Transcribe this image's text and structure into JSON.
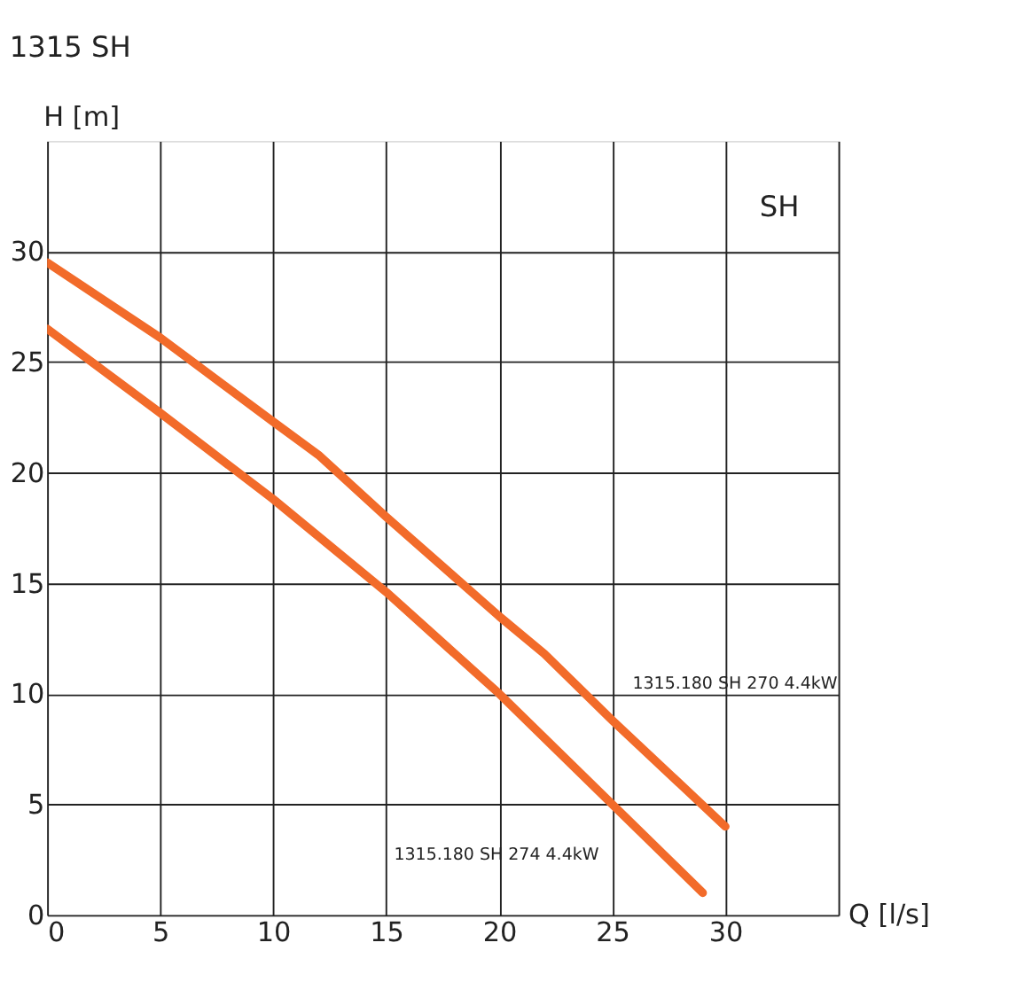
{
  "chart_data": {
    "type": "line",
    "title": "1315 SH",
    "xlabel": "Q [l/s]",
    "ylabel": "H [m]",
    "annotations": [
      "SH"
    ],
    "xlim": [
      0,
      35
    ],
    "ylim": [
      0,
      35
    ],
    "xticks": [
      0,
      5,
      10,
      15,
      20,
      25,
      30,
      {
        "value": 35,
        "label": null
      }
    ],
    "yticks": [
      0,
      5,
      10,
      15,
      20,
      25,
      30
    ],
    "grid": true,
    "legend": false,
    "marker": "none",
    "line_style": "solid",
    "series": [
      {
        "name": "1315.180 SH 270 4.4kW",
        "color": "#f26b2a",
        "x": [
          0,
          5,
          10,
          12,
          15,
          20,
          22,
          25,
          30
        ],
        "values": [
          29.5,
          26.1,
          22.3,
          20.8,
          18,
          13.5,
          11.8,
          8.8,
          4
        ]
      },
      {
        "name": "1315.180 SH 274 4.4kW",
        "color": "#f26b2a",
        "x": [
          0,
          5,
          10,
          15,
          20,
          25,
          29
        ],
        "values": [
          26.5,
          22.7,
          18.8,
          14.6,
          10,
          5,
          1
        ]
      }
    ]
  }
}
